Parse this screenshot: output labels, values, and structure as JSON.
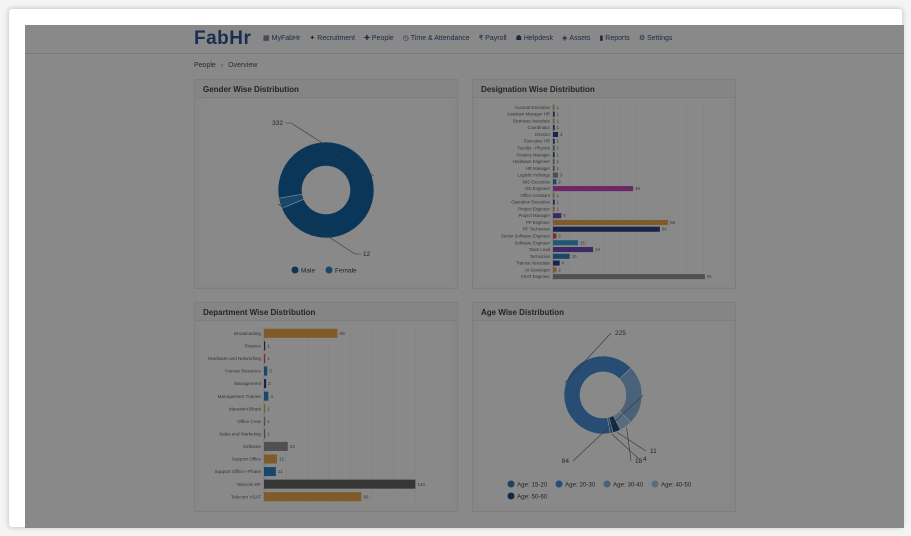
{
  "app": {
    "logo": "FabHr"
  },
  "nav": [
    {
      "label": "MyFabHr",
      "icon": "grid-icon"
    },
    {
      "label": "Recruitment",
      "icon": "users-icon"
    },
    {
      "label": "People",
      "icon": "people-icon"
    },
    {
      "label": "Time & Attendance",
      "icon": "clock-icon"
    },
    {
      "label": "Payroll",
      "icon": "rupee-icon"
    },
    {
      "label": "Helpdesk",
      "icon": "helpdesk-icon"
    },
    {
      "label": "Assets",
      "icon": "assets-icon"
    },
    {
      "label": "Reports",
      "icon": "chart-icon"
    },
    {
      "label": "Settings",
      "icon": "gear-icon"
    }
  ],
  "breadcrumb": {
    "root": "People",
    "sep": "›",
    "current": "Overview"
  },
  "cards": {
    "gender": "Gender Wise Distribution",
    "designation": "Designation Wise Distribution",
    "department": "Department Wise Distribution",
    "age": "Age Wise Distribution"
  },
  "colors": {
    "blue_dark": "#005b9f",
    "blue": "#1a7dc4",
    "orange": "#e8a33c",
    "magenta": "#c53cb8",
    "purple": "#6a3fb5",
    "gray": "#8c8c8c",
    "teal": "#2d9ad1",
    "green": "#3da34f",
    "navy": "#23357d",
    "red": "#d94a3a"
  },
  "chart_data": [
    {
      "type": "pie",
      "title": "Gender Wise Distribution",
      "categories": [
        "Male",
        "Female"
      ],
      "values": [
        332,
        12
      ],
      "colors": [
        "#005b9f",
        "#1a7dc4"
      ],
      "legend": "bottom"
    },
    {
      "type": "bar",
      "orientation": "horizontal",
      "title": "Designation Wise Distribution",
      "categories": [
        "Account Executive",
        "Assistant Manager HR",
        "Business Associate",
        "Coordinator",
        "Director",
        "Executive HR",
        "Faculty - Physics",
        "Finance Manager",
        "Hardware Engineer",
        "HR Manager",
        "Logistic Incharge",
        "MIS Executive",
        "OD Engineer",
        "Office Assistant",
        "Operation Executive",
        "Project Engineer",
        "Project Manager",
        "PP Engineer",
        "RF Technician",
        "Senior Software Engineer",
        "Software Engineer",
        "Team Lead",
        "Technician",
        "Trainee Associate",
        "UI Developer",
        "VSAT Engineer"
      ],
      "values": [
        1,
        1,
        1,
        1,
        3,
        1,
        1,
        1,
        1,
        1,
        3,
        2,
        48,
        1,
        1,
        1,
        5,
        69,
        64,
        2,
        15,
        24,
        10,
        4,
        2,
        91
      ],
      "colors": [
        "#e8a33c",
        "#23357d",
        "#e8a33c",
        "#23357d",
        "#23357d",
        "#23357d",
        "#3da34f",
        "#23357d",
        "#8c8c8c",
        "#3da34f",
        "#8c8c8c",
        "#1a7dc4",
        "#c53cb8",
        "#e8a33c",
        "#23357d",
        "#e8a33c",
        "#6a3fb5",
        "#e8a33c",
        "#23357d",
        "#d94a3a",
        "#2d9ad1",
        "#6a3fb5",
        "#1a7dc4",
        "#23357d",
        "#e8a33c",
        "#8c8c8c"
      ]
    },
    {
      "type": "bar",
      "orientation": "horizontal",
      "title": "Department Wise Distribution",
      "categories": [
        "Broadcasting",
        "Finance",
        "Hardware and Networking",
        "Human Resource",
        "Management",
        "Management Trainee",
        "Marasimi Bharti",
        "Office Crew",
        "Sales and Marketing",
        "Software",
        "Support Office",
        "Support Office I-Phase",
        "Telecom RF",
        "Telecom VSAT"
      ],
      "values": [
        68,
        1,
        1,
        3,
        2,
        4,
        1,
        1,
        1,
        22,
        12,
        11,
        140,
        90
      ],
      "colors": [
        "#e8a33c",
        "#23357d",
        "#d94a3a",
        "#1a7dc4",
        "#23357d",
        "#1a7dc4",
        "#e8a33c",
        "#8c8c8c",
        "#3da34f",
        "#8c8c8c",
        "#e8a33c",
        "#1a7dc4",
        "#5a5a5a",
        "#e8a33c"
      ]
    },
    {
      "type": "pie",
      "title": "Age Wise Distribution",
      "categories": [
        "Age: 15-20",
        "Age: 20-30",
        "Age: 30-40",
        "Age: 40-50",
        "Age: 50-60"
      ],
      "values": [
        4,
        225,
        84,
        18,
        11
      ],
      "colors": [
        "#2d6fb5",
        "#3a86d6",
        "#7fb0de",
        "#9cc6e8",
        "#0b3e7a"
      ],
      "legend": "bottom"
    }
  ]
}
